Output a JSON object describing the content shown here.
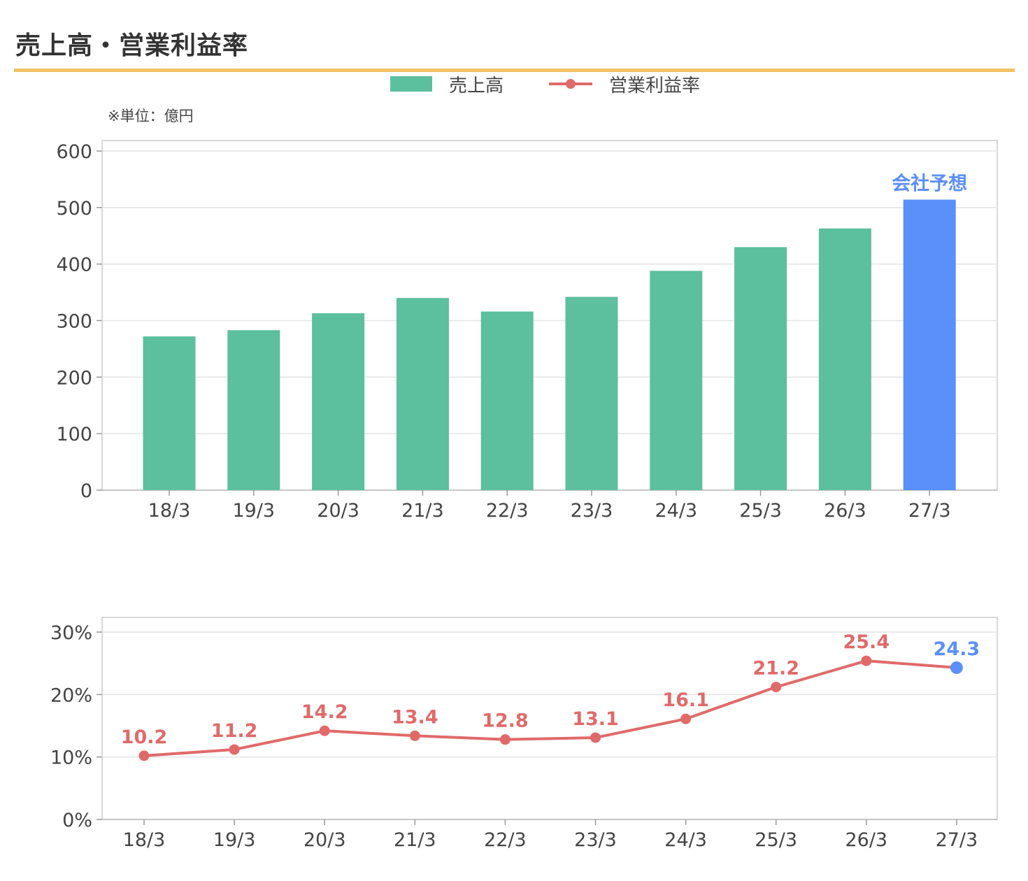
{
  "page": {
    "title": "売上高・営業利益率",
    "unit_note": "※単位：億円"
  },
  "colors": {
    "sales": "#5cbf9d",
    "forecast": "#5b8ff9",
    "margin": "#e06a6a",
    "title_rule": "#f2c262",
    "grid": "#e3e3e3",
    "axis": "#cccccc"
  },
  "chart_data": [
    {
      "type": "bar",
      "name": "sales",
      "categories": [
        "18/3",
        "19/3",
        "20/3",
        "21/3",
        "22/3",
        "23/3",
        "24/3",
        "25/3",
        "26/3",
        "27/3"
      ],
      "series": [
        {
          "name": "売上高",
          "values": [
            272,
            283,
            313,
            340,
            316,
            342,
            388,
            430,
            463,
            514
          ]
        }
      ],
      "forecast_index": 9,
      "forecast_label": "会社予想",
      "ylim": [
        0,
        600
      ],
      "yticks": [
        0,
        100,
        200,
        300,
        400,
        500,
        600
      ],
      "ytick_labels": [
        "0",
        "100",
        "200",
        "300",
        "400",
        "500",
        "600"
      ],
      "grid": true,
      "legend": "top-center"
    },
    {
      "type": "line",
      "name": "margin",
      "categories": [
        "18/3",
        "19/3",
        "20/3",
        "21/3",
        "22/3",
        "23/3",
        "24/3",
        "25/3",
        "26/3",
        "27/3"
      ],
      "series": [
        {
          "name": "営業利益率",
          "values": [
            10.2,
            11.2,
            14.2,
            13.4,
            12.8,
            13.1,
            16.1,
            21.2,
            25.4,
            24.3
          ]
        }
      ],
      "value_labels": [
        "10.2",
        "11.2",
        "14.2",
        "13.4",
        "12.8",
        "13.1",
        "16.1",
        "21.2",
        "25.4",
        "24.3"
      ],
      "forecast_index": 9,
      "ylim": [
        0,
        30
      ],
      "yticks": [
        0,
        10,
        20,
        30
      ],
      "ytick_labels": [
        "0%",
        "10%",
        "20%",
        "30%"
      ],
      "grid": true
    }
  ]
}
